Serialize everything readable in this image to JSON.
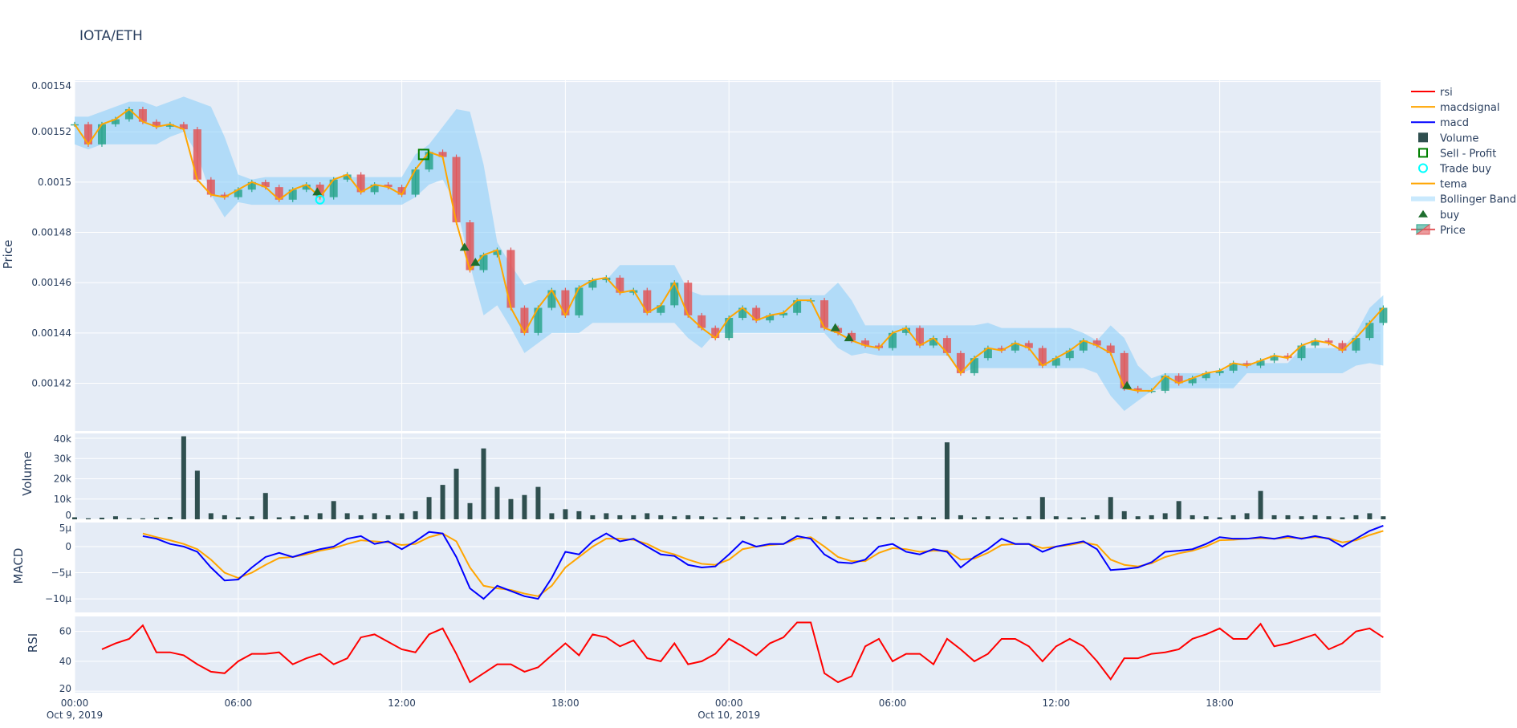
{
  "title": "IOTA/ETH",
  "colors": {
    "plot_bg": "#E5ECF6",
    "increasing": "#2CA58D",
    "decreasing": "#E0585B",
    "bollinger": "rgba(135,206,250,0.55)",
    "tema": "#FFA500",
    "macd": "#0000FF",
    "macdsignal": "#FFA500",
    "rsi": "#FF0000",
    "volume": "#2F4F4F",
    "buy": "#1E6E2E",
    "sell_profit": "#008000",
    "trade_buy": "#00FFFF"
  },
  "legend": [
    {
      "name": "rsi",
      "symbol": "line",
      "color": "#FF0000"
    },
    {
      "name": "macdsignal",
      "symbol": "line",
      "color": "#FFA500"
    },
    {
      "name": "macd",
      "symbol": "line",
      "color": "#0000FF"
    },
    {
      "name": "Volume",
      "symbol": "square",
      "color": "#2F4F4F"
    },
    {
      "name": "Sell - Profit",
      "symbol": "square-open",
      "color": "#008000"
    },
    {
      "name": "Trade buy",
      "symbol": "circle-open",
      "color": "#00FFFF"
    },
    {
      "name": "tema",
      "symbol": "line",
      "color": "#FFA500"
    },
    {
      "name": "Bollinger Band",
      "symbol": "band",
      "color": "rgba(135,206,250,0.45)"
    },
    {
      "name": "buy",
      "symbol": "triangle-up",
      "color": "#1E6E2E"
    },
    {
      "name": "Price",
      "symbol": "candle",
      "color": "#2CA58D"
    }
  ],
  "chart_data": {
    "type": "candlestick-with-indicators",
    "x_start": "2019-10-09 00:00",
    "interval_minutes": 30,
    "x_ticks": [
      {
        "hour": 0,
        "label": "00:00",
        "sub": "Oct 9, 2019"
      },
      {
        "hour": 6,
        "label": "06:00",
        "sub": ""
      },
      {
        "hour": 12,
        "label": "12:00",
        "sub": ""
      },
      {
        "hour": 18,
        "label": "18:00",
        "sub": ""
      },
      {
        "hour": 24,
        "label": "00:00",
        "sub": "Oct 10, 2019"
      },
      {
        "hour": 30,
        "label": "06:00",
        "sub": ""
      },
      {
        "hour": 36,
        "label": "12:00",
        "sub": ""
      },
      {
        "hour": 42,
        "label": "18:00",
        "sub": ""
      }
    ],
    "x_range_hours": [
      0,
      47.9
    ],
    "panels": {
      "price": {
        "ylabel": "Price",
        "ylim": [
          0.001401,
          0.0015405
        ],
        "ticks": [
          {
            "v": 0.00142,
            "label": "0.00142"
          },
          {
            "v": 0.00144,
            "label": "0.00144"
          },
          {
            "v": 0.00146,
            "label": "0.00146"
          },
          {
            "v": 0.00148,
            "label": "0.00148"
          },
          {
            "v": 0.0015,
            "label": "0.0015"
          },
          {
            "v": 0.00152,
            "label": "0.00152"
          },
          {
            "v": 0.00154,
            "label": "0.00154"
          }
        ],
        "scale": 1e-05,
        "close": [
          152.3,
          151.5,
          152.3,
          152.5,
          152.9,
          152.4,
          152.2,
          152.3,
          152.1,
          150.1,
          149.5,
          149.4,
          149.7,
          150.0,
          149.8,
          149.3,
          149.7,
          149.9,
          149.4,
          150.1,
          150.3,
          149.6,
          149.9,
          149.8,
          149.5,
          150.5,
          151.2,
          151.0,
          148.4,
          146.5,
          147.1,
          147.3,
          145.0,
          144.0,
          145.0,
          145.7,
          144.7,
          145.8,
          146.1,
          146.2,
          145.6,
          145.7,
          144.8,
          145.1,
          146.0,
          144.7,
          144.2,
          143.8,
          144.6,
          145.0,
          144.5,
          144.7,
          144.8,
          145.3,
          145.3,
          144.2,
          144.0,
          143.7,
          143.5,
          143.4,
          144.0,
          144.2,
          143.5,
          143.8,
          143.2,
          142.4,
          143.0,
          143.4,
          143.3,
          143.6,
          143.4,
          142.7,
          143.0,
          143.3,
          143.7,
          143.5,
          143.2,
          141.8,
          141.7,
          141.7,
          142.3,
          142.0,
          142.2,
          142.4,
          142.5,
          142.8,
          142.7,
          142.9,
          143.1,
          143.0,
          143.5,
          143.7,
          143.6,
          143.3,
          143.8,
          144.4,
          145.0
        ],
        "bb_upper": [
          152.6,
          152.6,
          152.8,
          153.0,
          153.2,
          153.2,
          153.0,
          153.2,
          153.4,
          153.2,
          153.0,
          151.8,
          150.3,
          150.1,
          150.2,
          150.2,
          150.2,
          150.2,
          150.2,
          150.2,
          150.2,
          150.2,
          150.2,
          150.2,
          150.2,
          151.1,
          151.5,
          152.2,
          152.9,
          152.8,
          150.7,
          147.6,
          146.7,
          145.9,
          146.1,
          146.1,
          146.1,
          146.1,
          146.1,
          146.1,
          146.7,
          146.7,
          146.7,
          146.7,
          146.7,
          145.7,
          145.5,
          145.5,
          145.5,
          145.5,
          145.5,
          145.5,
          145.5,
          145.5,
          145.5,
          145.5,
          146.0,
          145.3,
          144.3,
          144.3,
          144.3,
          144.3,
          144.3,
          144.3,
          144.3,
          144.3,
          144.3,
          144.4,
          144.2,
          144.2,
          144.2,
          144.2,
          144.2,
          144.2,
          144.0,
          143.7,
          144.3,
          143.8,
          142.7,
          142.2,
          142.4,
          142.4,
          142.4,
          142.4,
          142.4,
          142.8,
          142.8,
          142.8,
          142.8,
          142.8,
          143.4,
          143.4,
          143.4,
          143.4,
          144.0,
          145.0,
          145.5
        ],
        "bb_lower": [
          151.5,
          151.3,
          151.5,
          151.5,
          151.5,
          151.5,
          151.5,
          151.8,
          152.0,
          151.1,
          149.5,
          148.6,
          149.2,
          149.1,
          149.1,
          149.1,
          149.1,
          149.1,
          149.1,
          149.1,
          149.1,
          149.1,
          149.1,
          149.1,
          149.1,
          149.4,
          149.9,
          150.1,
          149.1,
          146.7,
          144.7,
          145.1,
          144.2,
          143.2,
          143.6,
          144.0,
          144.0,
          144.0,
          144.4,
          144.4,
          144.4,
          144.4,
          144.4,
          144.4,
          144.4,
          143.8,
          143.4,
          144.0,
          144.0,
          144.0,
          144.0,
          144.0,
          144.0,
          144.0,
          144.0,
          144.0,
          143.4,
          143.1,
          143.2,
          143.1,
          143.1,
          143.1,
          143.1,
          143.1,
          143.1,
          142.4,
          142.6,
          142.6,
          142.6,
          142.6,
          142.6,
          142.6,
          142.6,
          142.6,
          142.6,
          142.4,
          141.5,
          140.9,
          141.3,
          141.7,
          141.8,
          141.8,
          141.8,
          141.8,
          141.8,
          141.8,
          142.4,
          142.4,
          142.4,
          142.4,
          142.4,
          142.4,
          142.4,
          142.4,
          142.7,
          142.8,
          142.7
        ],
        "buy_markers": [
          {
            "hour": 8.9,
            "price": 149.6
          },
          {
            "hour": 14.3,
            "price": 147.4
          },
          {
            "hour": 14.7,
            "price": 146.8
          },
          {
            "hour": 27.9,
            "price": 144.2
          },
          {
            "hour": 28.4,
            "price": 143.8
          },
          {
            "hour": 38.6,
            "price": 141.9
          }
        ],
        "trade_buy_markers": [
          {
            "hour": 9.0,
            "price": 149.3
          }
        ],
        "sell_profit_markers": [
          {
            "hour": 12.8,
            "price": 151.1
          }
        ]
      },
      "volume": {
        "ylabel": "Volume",
        "ylim": [
          0,
          42400
        ],
        "ticks": [
          {
            "v": 0,
            "label": "0"
          },
          {
            "v": 10000,
            "label": "10k"
          },
          {
            "v": 20000,
            "label": "20k"
          },
          {
            "v": 30000,
            "label": "30k"
          },
          {
            "v": 40000,
            "label": "40k"
          }
        ],
        "values": [
          1000,
          500,
          800,
          1500,
          600,
          500,
          800,
          1200,
          41000,
          24000,
          3000,
          2000,
          1000,
          1500,
          13000,
          1000,
          1500,
          2000,
          3000,
          9000,
          3000,
          2000,
          3000,
          2000,
          3000,
          4000,
          11000,
          17000,
          25000,
          8000,
          35000,
          16000,
          10000,
          12000,
          16000,
          3000,
          5000,
          4000,
          2000,
          3000,
          2000,
          2000,
          3000,
          2000,
          1500,
          2000,
          1500,
          1000,
          1000,
          1500,
          1000,
          1000,
          1500,
          1000,
          800,
          1500,
          1500,
          1000,
          1000,
          1200,
          1000,
          1000,
          1500,
          1000,
          38000,
          2000,
          1000,
          1500,
          1000,
          1000,
          1500,
          11000,
          1500,
          1000,
          1000,
          2000,
          11000,
          4000,
          1500,
          2000,
          3000,
          9000,
          2000,
          1500,
          1000,
          2000,
          3000,
          14000,
          2000,
          2000,
          1500,
          2000,
          1500,
          1000,
          2000,
          3000,
          1500
        ]
      },
      "macd": {
        "ylabel": "MACD",
        "ylim": [
          -12.6,
          4.6
        ],
        "unit_scale": 1e-06,
        "ticks": [
          {
            "v": 5,
            "label": "5µ"
          },
          {
            "v": 0,
            "label": "0"
          },
          {
            "v": -5,
            "label": "−5µ"
          },
          {
            "v": -10,
            "label": "−10µ"
          }
        ],
        "macd": [
          null,
          null,
          null,
          null,
          null,
          2.0,
          1.5,
          0.5,
          0,
          -1,
          -4,
          -6.5,
          -6.3,
          -4,
          -2,
          -1.2,
          -2,
          -1.2,
          -0.5,
          0,
          1.5,
          2,
          0.5,
          1,
          -0.5,
          1,
          2.8,
          2.5,
          -2,
          -8,
          -10,
          -7.5,
          -8.5,
          -9.5,
          -10,
          -6,
          -1,
          -1.5,
          1,
          2.5,
          1,
          1.5,
          0,
          -1.5,
          -1.8,
          -3.5,
          -4,
          -3.8,
          -1.5,
          1,
          0,
          0.5,
          0.5,
          2,
          1.5,
          -1.5,
          -3,
          -3.2,
          -2.5,
          0,
          0.5,
          -1,
          -1.5,
          -0.5,
          -1,
          -4,
          -2,
          -0.5,
          1.5,
          0.5,
          0.5,
          -1,
          0,
          0.5,
          1,
          -0.5,
          -4.5,
          -4.3,
          -4,
          -3,
          -1,
          -0.8,
          -0.5,
          0.5,
          1.8,
          1.5,
          1.5,
          1.8,
          1.5,
          2,
          1.5,
          2,
          1.5,
          0,
          1.5,
          3,
          4
        ],
        "macdsignal": [
          null,
          null,
          null,
          null,
          null,
          2.5,
          1.8,
          1.2,
          0.5,
          -0.5,
          -2.5,
          -5,
          -6,
          -5,
          -3.5,
          -2.2,
          -2,
          -1.5,
          -0.8,
          -0.3,
          0.5,
          1.2,
          1,
          0.8,
          0.3,
          0.5,
          1.8,
          2.5,
          1,
          -4,
          -7.5,
          -8,
          -8.3,
          -9,
          -9.5,
          -7.5,
          -4,
          -2,
          0,
          1.5,
          1.5,
          1.3,
          0.5,
          -0.8,
          -1.5,
          -2.5,
          -3.3,
          -3.5,
          -2.5,
          -0.5,
          0,
          0.3,
          0.5,
          1.5,
          1.8,
          0,
          -2,
          -2.8,
          -2.8,
          -1.2,
          -0.3,
          -0.5,
          -1,
          -0.8,
          -0.8,
          -2.5,
          -2.3,
          -1.2,
          0.3,
          0.5,
          0.5,
          -0.3,
          0,
          0.3,
          0.8,
          0.3,
          -2.5,
          -3.5,
          -3.8,
          -3.2,
          -2,
          -1.3,
          -0.8,
          0,
          1.2,
          1.3,
          1.5,
          1.6,
          1.5,
          1.7,
          1.6,
          1.8,
          1.6,
          0.8,
          1.2,
          2.2,
          3
        ]
      },
      "rsi": {
        "ylabel": "RSI",
        "ylim": [
          19,
          70
        ],
        "ticks": [
          {
            "v": 20,
            "label": "20"
          },
          {
            "v": 40,
            "label": "40"
          },
          {
            "v": 60,
            "label": "60"
          }
        ],
        "values": [
          null,
          null,
          48,
          52,
          55,
          64,
          46,
          46,
          44,
          38,
          33,
          32,
          40,
          45,
          45,
          46,
          38,
          42,
          45,
          38,
          42,
          56,
          58,
          53,
          48,
          46,
          58,
          62,
          45,
          26,
          32,
          38,
          38,
          33,
          36,
          44,
          52,
          44,
          58,
          56,
          50,
          54,
          42,
          40,
          52,
          38,
          40,
          45,
          55,
          50,
          44,
          52,
          56,
          66,
          66,
          32,
          26,
          30,
          50,
          55,
          40,
          45,
          45,
          38,
          55,
          48,
          40,
          45,
          55,
          55,
          50,
          40,
          50,
          55,
          50,
          40,
          28,
          42,
          42,
          45,
          46,
          48,
          55,
          58,
          62,
          55,
          55,
          65,
          50,
          52,
          55,
          58,
          48,
          52,
          60,
          62,
          56
        ]
      }
    }
  }
}
